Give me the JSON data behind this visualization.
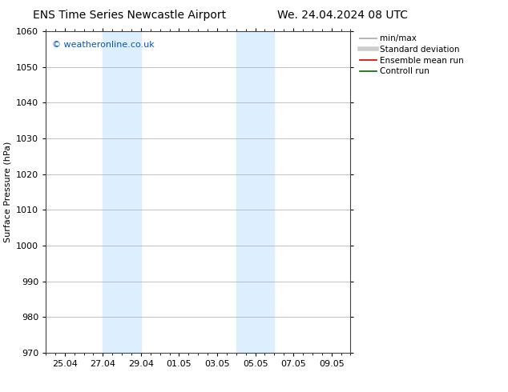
{
  "title_left": "ENS Time Series Newcastle Airport",
  "title_right": "We. 24.04.2024 08 UTC",
  "ylabel": "Surface Pressure (hPa)",
  "ylim": [
    970,
    1060
  ],
  "yticks": [
    970,
    980,
    990,
    1000,
    1010,
    1020,
    1030,
    1040,
    1050,
    1060
  ],
  "xlim": [
    0,
    16
  ],
  "xtick_positions": [
    1,
    3,
    5,
    7,
    9,
    11,
    13,
    15
  ],
  "xtick_labels": [
    "25.04",
    "27.04",
    "29.04",
    "01.05",
    "03.05",
    "05.05",
    "07.05",
    "09.05"
  ],
  "minor_xtick_positions": [
    0,
    0.5,
    1,
    1.5,
    2,
    2.5,
    3,
    3.5,
    4,
    4.5,
    5,
    5.5,
    6,
    6.5,
    7,
    7.5,
    8,
    8.5,
    9,
    9.5,
    10,
    10.5,
    11,
    11.5,
    12,
    12.5,
    13,
    13.5,
    14,
    14.5,
    15,
    15.5,
    16
  ],
  "shaded_bands": [
    {
      "x_start": 2.5,
      "x_end": 3.5
    },
    {
      "x_start": 3.5,
      "x_end": 4.5
    },
    {
      "x_start": 10.0,
      "x_end": 11.0
    },
    {
      "x_start": 11.0,
      "x_end": 11.5
    }
  ],
  "shaded_color": "#ddeeff",
  "copyright_text": "© weatheronline.co.uk",
  "copyright_color": "#0055cc",
  "legend_items": [
    {
      "label": "min/max",
      "color": "#aaaaaa",
      "lw": 1.2,
      "style": "solid"
    },
    {
      "label": "Standard deviation",
      "color": "#cccccc",
      "lw": 4,
      "style": "solid"
    },
    {
      "label": "Ensemble mean run",
      "color": "#cc0000",
      "lw": 1.2,
      "style": "solid"
    },
    {
      "label": "Controll run",
      "color": "#006600",
      "lw": 1.2,
      "style": "solid"
    }
  ],
  "bg_color": "#ffffff",
  "grid_color": "#aaaaaa",
  "title_fontsize": 10,
  "axis_label_fontsize": 8,
  "tick_fontsize": 8,
  "legend_fontsize": 7.5
}
